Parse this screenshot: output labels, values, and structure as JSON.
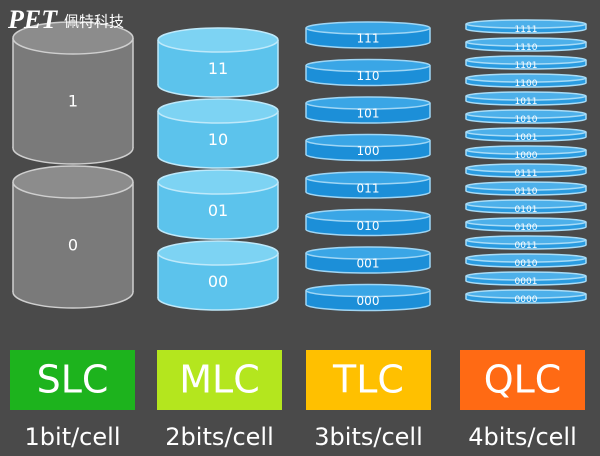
{
  "logo": {
    "mark": "PET",
    "name": "佩特科技"
  },
  "columns": [
    {
      "cells": [
        "1",
        "0"
      ],
      "type": "SLC",
      "bits": "1bit/cell"
    },
    {
      "cells": [
        "11",
        "10",
        "01",
        "00"
      ],
      "type": "MLC",
      "bits": "2bits/cell"
    },
    {
      "cells": [
        "111",
        "110",
        "101",
        "100",
        "011",
        "010",
        "001",
        "000"
      ],
      "type": "TLC",
      "bits": "3bits/cell"
    },
    {
      "cells": [
        "1111",
        "1110",
        "1101",
        "1100",
        "1011",
        "1010",
        "1001",
        "1000",
        "0111",
        "0110",
        "0101",
        "0100",
        "0011",
        "0010",
        "0001",
        "0000"
      ],
      "type": "QLC",
      "bits": "4bits/cell"
    }
  ]
}
